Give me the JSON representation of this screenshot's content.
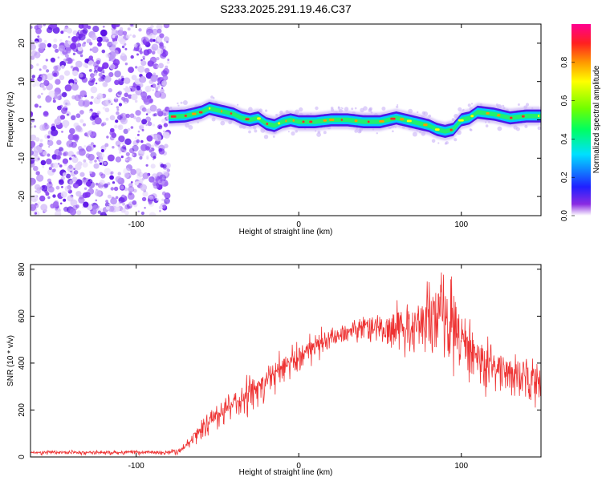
{
  "title": "S233.2025.291.19.46.C37",
  "chart_data": [
    {
      "type": "heatmap",
      "name": "spectrogram",
      "xlabel": "Height of straight line (km)",
      "ylabel": "Frequency (Hz)",
      "xlim": [
        -165,
        149
      ],
      "ylim": [
        -25,
        25
      ],
      "xticks": [
        -100,
        0,
        100
      ],
      "yticks": [
        -20,
        -10,
        0,
        10,
        20
      ],
      "signal_onset_km": -80,
      "ridge": {
        "x": [
          -80,
          -70,
          -60,
          -55,
          -50,
          -45,
          -40,
          -35,
          -30,
          -25,
          -20,
          -15,
          -10,
          -5,
          0,
          10,
          20,
          30,
          40,
          50,
          60,
          70,
          80,
          85,
          90,
          95,
          100,
          105,
          110,
          120,
          130,
          140,
          149
        ],
        "y": [
          0.8,
          1.0,
          2.0,
          3.0,
          2.5,
          2.0,
          1.5,
          0.5,
          0.0,
          0.5,
          -1.0,
          -1.5,
          -0.5,
          0.0,
          -0.5,
          -0.5,
          0.0,
          0.0,
          -0.5,
          -0.5,
          0.5,
          -0.5,
          -1.5,
          -2.5,
          -3.0,
          -2.5,
          0.0,
          0.5,
          2.0,
          1.5,
          0.5,
          1.0,
          1.0
        ]
      },
      "colorbar": {
        "label": "Normalized spectral amplitude",
        "range": [
          0,
          1
        ],
        "ticks": [
          0.0,
          0.2,
          0.4,
          0.6,
          0.8
        ],
        "tick_labels": [
          "0.0",
          "0.2",
          "0.4",
          "0.6",
          "0.8"
        ]
      }
    },
    {
      "type": "line",
      "name": "snr",
      "xlabel": "Height of straight line (km)",
      "ylabel": "SNR (10 * v/v)",
      "xlim": [
        -165,
        149
      ],
      "ylim": [
        0,
        820
      ],
      "xticks": [
        -100,
        0,
        100
      ],
      "yticks": [
        0,
        200,
        400,
        600,
        800
      ],
      "color": "#ee3333",
      "envelope": {
        "x": [
          -165,
          -80,
          -72,
          -65,
          -55,
          -45,
          -35,
          -25,
          -15,
          -5,
          5,
          15,
          25,
          35,
          45,
          55,
          65,
          75,
          85,
          90,
          95,
          100,
          105,
          110,
          120,
          130,
          140,
          149
        ],
        "low": [
          8,
          8,
          10,
          30,
          60,
          100,
          150,
          200,
          260,
          320,
          370,
          420,
          460,
          480,
          470,
          420,
          380,
          360,
          330,
          320,
          320,
          310,
          300,
          260,
          220,
          190,
          180,
          180
        ],
        "high": [
          28,
          30,
          45,
          120,
          230,
          290,
          340,
          390,
          450,
          480,
          520,
          560,
          580,
          610,
          630,
          650,
          690,
          730,
          790,
          820,
          760,
          680,
          620,
          560,
          500,
          470,
          460,
          450
        ]
      }
    }
  ]
}
